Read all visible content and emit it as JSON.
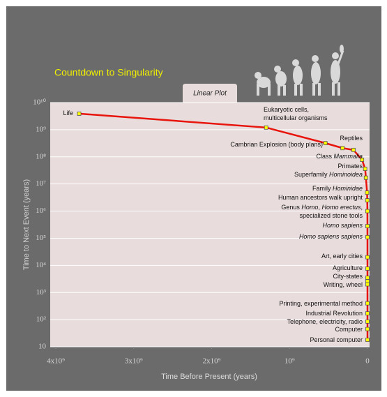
{
  "chart_data": {
    "type": "line",
    "title": "Countdown to Singularity",
    "subtitle": "Linear Plot",
    "x_label": "Time Before Present (years)",
    "y_label": "Time to Next Event (years)",
    "xlim": [
      4000000000,
      0
    ],
    "ylim": [
      10,
      10000000000
    ],
    "log_y": true,
    "grid": true,
    "xticks": [
      {
        "value": 4000000000,
        "label": "4x10⁹"
      },
      {
        "value": 3000000000,
        "label": "3x10⁹"
      },
      {
        "value": 2000000000,
        "label": "2x10⁹"
      },
      {
        "value": 1000000000,
        "label": "10⁹"
      },
      0
    ],
    "yticks": [
      {
        "value": 10000000000,
        "label": "10¹⁰"
      },
      {
        "value": 1000000000,
        "label": "10⁹"
      },
      {
        "value": 100000000,
        "label": "10⁸"
      },
      {
        "value": 10000000,
        "label": "10⁷"
      },
      {
        "value": 1000000,
        "label": "10⁶"
      },
      {
        "value": 100000,
        "label": "10⁵"
      },
      {
        "value": 10000,
        "label": "10⁴"
      },
      {
        "value": 1000,
        "label": "10³"
      },
      {
        "value": 100,
        "label": "10²"
      },
      10
    ],
    "series": [
      {
        "color": "#e8140c",
        "marker_color": "#ffff00",
        "x": [
          3700000000,
          1300000000,
          540000000,
          320000000,
          180000000,
          70000000,
          30000000,
          20000000,
          5000000,
          2500000,
          1000000,
          280000,
          110000,
          20000,
          10000,
          5000,
          3500,
          2000,
          500,
          200,
          100,
          50,
          20
        ],
        "values": [
          3900000000,
          1200000000,
          320000000,
          210000000,
          180000000,
          78000000,
          36000000,
          17000000,
          4800000,
          2500000,
          1000000,
          280000,
          110000,
          20000,
          7600,
          3500,
          2600,
          2000,
          400,
          170,
          85,
          45,
          18
        ],
        "labels": [
          [
            [
              "Life"
            ]
          ],
          [
            [
              "Eukaryotic cells,"
            ],
            [
              "multicellular organisms"
            ]
          ],
          [
            [
              "Cambrian Explosion (body plans)"
            ]
          ],
          null,
          [
            [
              "Reptiles"
            ]
          ],
          [
            [
              "Class ",
              {
                "text": "Mammalia",
                "italic": true
              }
            ]
          ],
          [
            [
              "Primates"
            ]
          ],
          [
            [
              "Superfamily ",
              {
                "text": "Hominoidea",
                "italic": true
              }
            ]
          ],
          [
            [
              "Family ",
              {
                "text": "Hominidae",
                "italic": true
              }
            ]
          ],
          [
            [
              "Human ancestors walk upright"
            ]
          ],
          [
            [
              "Genus ",
              {
                "text": "Homo",
                "italic": true
              },
              ", ",
              {
                "text": "Homo erectus",
                "italic": true
              },
              ","
            ],
            [
              "specialized stone tools"
            ]
          ],
          [
            [
              {
                "text": "Homo sapiens",
                "italic": true
              }
            ]
          ],
          [
            [
              {
                "text": "Homo sapiens sapiens",
                "italic": true
              }
            ]
          ],
          [
            [
              "Art, early cities"
            ]
          ],
          [
            [
              "Agriculture"
            ]
          ],
          [
            [
              "City-states"
            ]
          ],
          null,
          [
            [
              "Writing, wheel"
            ]
          ],
          [
            [
              "Printing, experimental method"
            ]
          ],
          [
            [
              "Industrial Revolution"
            ]
          ],
          [
            [
              "Telephone, electricity, radio"
            ]
          ],
          [
            [
              "Computer"
            ]
          ],
          [
            [
              "Personal computer"
            ]
          ]
        ]
      }
    ]
  }
}
